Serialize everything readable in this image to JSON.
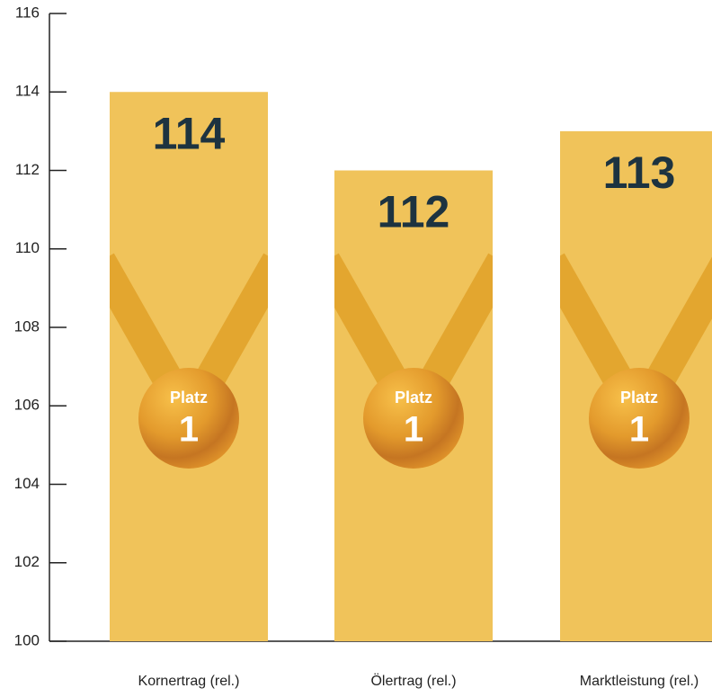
{
  "chart_data": {
    "type": "bar",
    "categories": [
      "Kornertrag (rel.)",
      "Ölertrag (rel.)",
      "Marktleistung (rel.)"
    ],
    "values": [
      114,
      112,
      113
    ],
    "color": "#f0c35a",
    "medal_label": "Platz",
    "medal_rank": "1",
    "ylim": [
      100,
      116
    ],
    "yticks": [
      100,
      102,
      104,
      106,
      108,
      110,
      112,
      114,
      116
    ]
  }
}
